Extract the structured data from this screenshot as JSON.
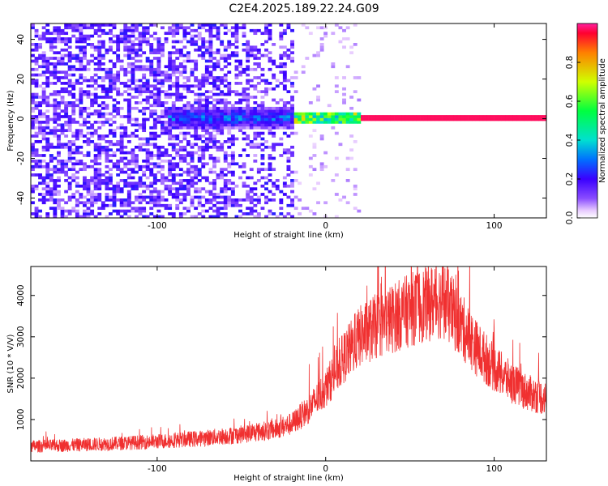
{
  "title": "C2E4.2025.189.22.24.G09",
  "chart_data": [
    {
      "type": "heatmap",
      "xlabel": "Height of straight line (km)",
      "ylabel": "Frequency (Hz)",
      "xlim": [
        -175,
        131
      ],
      "ylim": [
        -50,
        48
      ],
      "xticks": [
        -100,
        0,
        100
      ],
      "yticks": [
        40,
        20,
        0,
        -20,
        -40
      ],
      "colorbar": {
        "label": "Normalized spectral amplitude",
        "range": [
          0,
          1
        ],
        "ticks": [
          "0.0",
          "0.2",
          "0.4",
          "0.6",
          "0.8"
        ]
      },
      "features": [
        {
          "x_range": [
            -175,
            -20
          ],
          "frequency_range": [
            -50,
            48
          ],
          "amplitude": 0.12
        },
        {
          "x_range": [
            -95,
            -20
          ],
          "frequency_range": [
            -5,
            5
          ],
          "amplitude": 0.3
        },
        {
          "x_range": [
            -20,
            20
          ],
          "frequency_range": [
            -2,
            2
          ],
          "amplitude": 0.6
        },
        {
          "x_range": [
            20,
            131
          ],
          "frequency_range": [
            -1,
            1
          ],
          "amplitude": 1.0
        }
      ]
    },
    {
      "type": "line",
      "xlabel": "Height of straight line (km)",
      "ylabel": "SNR (10 * V/V)",
      "xlim": [
        -175,
        131
      ],
      "ylim": [
        0,
        4700
      ],
      "xticks": [
        -100,
        0,
        100
      ],
      "yticks": [
        1000,
        2000,
        3000,
        4000
      ],
      "color": "#f03030",
      "x": [
        -175,
        -150,
        -125,
        -100,
        -75,
        -50,
        -30,
        -20,
        -10,
        0,
        10,
        20,
        30,
        40,
        50,
        60,
        70,
        80,
        90,
        100,
        110,
        120,
        131
      ],
      "y": [
        350,
        380,
        420,
        470,
        540,
        640,
        760,
        900,
        1250,
        1750,
        2450,
        3000,
        3250,
        3450,
        3650,
        3800,
        3900,
        3300,
        2700,
        2250,
        1900,
        1650,
        1500
      ]
    }
  ]
}
